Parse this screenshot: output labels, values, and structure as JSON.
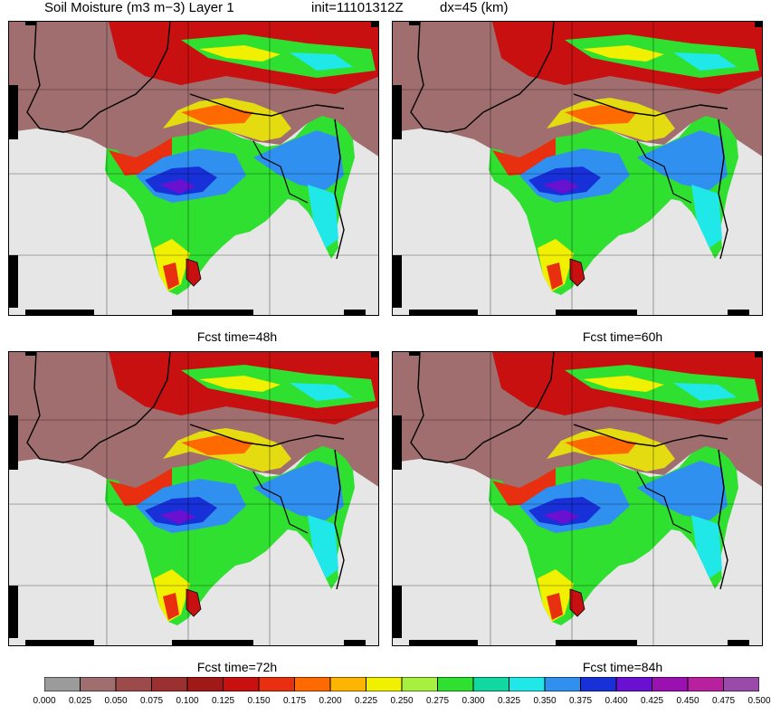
{
  "header": {
    "title": "Soil Moisture (m3 m−3) Layer 1",
    "init": "init=11101312Z",
    "dx": "dx=45 (km)"
  },
  "panels": [
    {
      "caption": "Fcst time=48h"
    },
    {
      "caption": "Fcst time=60h"
    },
    {
      "caption": "Fcst time=72h"
    },
    {
      "caption": "Fcst time=84h"
    }
  ],
  "legend": {
    "ticks": [
      "0.000",
      "0.025",
      "0.050",
      "0.075",
      "0.100",
      "0.125",
      "0.150",
      "0.175",
      "0.200",
      "0.225",
      "0.250",
      "0.275",
      "0.300",
      "0.325",
      "0.350",
      "0.375",
      "0.400",
      "0.425",
      "0.450",
      "0.475",
      "0.500"
    ],
    "colors": [
      "#9b9b9b",
      "#a06e6e",
      "#9c4a4a",
      "#9a3030",
      "#a01818",
      "#c81010",
      "#e83010",
      "#ff6a00",
      "#ffb400",
      "#f0f000",
      "#a8f040",
      "#30e030",
      "#10d8a0",
      "#20e8e8",
      "#3090f0",
      "#1830d8",
      "#6a10d0",
      "#9a10b0",
      "#b820a0",
      "#9a4aa8"
    ],
    "colors_note_ocean": "#e6e6e6"
  }
}
